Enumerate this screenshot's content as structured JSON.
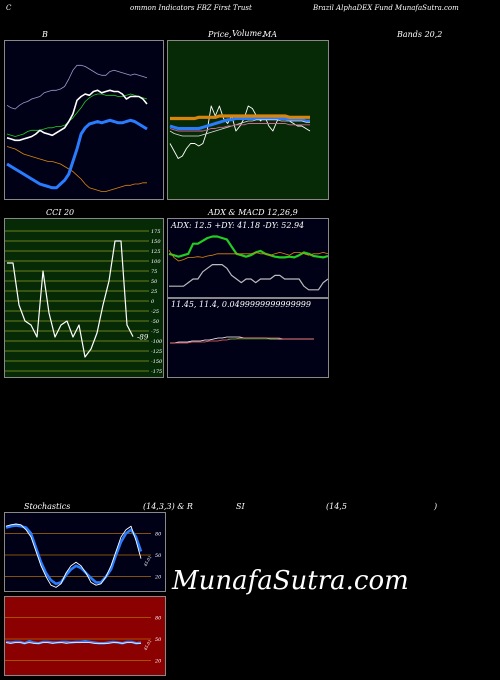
{
  "header": {
    "left": "C",
    "middle": "ommon  Indicators FBZ First Trust",
    "right": "Brazil AlphaDEX  Fund MunafaSutra.com"
  },
  "titles": {
    "b": "B",
    "price": "Price,",
    "price_overlap": "Volume,",
    "ma": "MA",
    "bands": "Bands 20,2",
    "cci": "CCI 20",
    "adx_macd": "ADX  & MACD 12,26,9",
    "stoch": "Stochastics",
    "stoch_params": "(14,3,3) & R",
    "rsi": "SI",
    "rsi_params": "(14,5",
    "rsi_close": ")"
  },
  "adx_readout": "ADX: 12.5 +DY: 41.18 -DY: 52.94",
  "macd_readout": "11.45,  11.4,  0.0499999999999999",
  "watermark": "MunafaSutra.com",
  "colors": {
    "navy_bg": "#000016",
    "green_bg": "#062a06",
    "red_bg": "#8b0000",
    "grid_orange": "#b06a00",
    "blue": "#2a7cff",
    "green": "#22cc22",
    "orange": "#d9850d",
    "white": "#ffffff"
  },
  "chart_data": [
    {
      "type": "line",
      "panel": "bollinger",
      "series": [
        {
          "values": [
            42,
            41,
            40,
            38,
            36,
            35,
            34,
            33,
            32,
            31,
            30,
            30,
            29,
            28,
            26,
            24,
            22,
            19,
            16,
            12,
            9,
            8,
            7,
            6,
            6,
            7,
            8,
            9,
            10,
            11,
            11,
            12,
            12,
            13,
            13
          ]
        },
        {
          "values": [
            52,
            51,
            50,
            51,
            52,
            54,
            55,
            55,
            55,
            56,
            57,
            57,
            58,
            58,
            59,
            62,
            65,
            69,
            73,
            78,
            81,
            83,
            84,
            84,
            83,
            83,
            83,
            82,
            82,
            83,
            84,
            83,
            82,
            81,
            80
          ]
        },
        {
          "values": [
            49,
            48,
            47,
            47,
            48,
            49,
            50,
            52,
            55,
            53,
            52,
            51,
            53,
            55,
            57,
            62,
            68,
            79,
            82,
            84,
            83,
            86,
            87,
            85,
            86,
            87,
            86,
            86,
            84,
            80,
            82,
            82,
            82,
            80,
            76
          ]
        },
        {
          "values": [
            28,
            26,
            24,
            22,
            20,
            18,
            16,
            14,
            12,
            11,
            10,
            9,
            9,
            12,
            15,
            20,
            30,
            40,
            52,
            57,
            60,
            61,
            62,
            61,
            62,
            63,
            62,
            61,
            61,
            62,
            63,
            62,
            60,
            58,
            56
          ]
        },
        {
          "values": [
            75,
            73,
            72,
            75,
            77,
            78,
            80,
            81,
            82,
            85,
            86,
            87,
            87,
            88,
            90,
            96,
            103,
            107,
            107,
            106,
            104,
            102,
            100,
            99,
            99,
            102,
            103,
            102,
            101,
            100,
            99,
            100,
            99,
            98,
            97
          ]
        }
      ]
    },
    {
      "type": "line",
      "panel": "price_ma",
      "series": [
        {
          "values": [
            30,
            24,
            18,
            20,
            26,
            30,
            30,
            28,
            30,
            40,
            60,
            52,
            60,
            50,
            46,
            52,
            40,
            44,
            50,
            60,
            58,
            52,
            48,
            52,
            44,
            40,
            48,
            52,
            52,
            48,
            46,
            44,
            44,
            42,
            40
          ]
        },
        {
          "values": [
            44,
            43,
            42,
            42,
            42,
            42,
            42,
            42,
            43,
            44,
            45,
            46,
            47,
            48,
            49,
            49,
            50,
            50,
            50,
            50,
            50,
            50,
            50,
            50,
            50,
            50,
            50,
            50,
            50,
            49,
            49,
            49,
            49,
            48,
            48
          ]
        },
        {
          "values": [
            50,
            50,
            50,
            50,
            50,
            50,
            50,
            51,
            51,
            51,
            51,
            51,
            52,
            52,
            52,
            52,
            52,
            52,
            52,
            52,
            52,
            52,
            52,
            52,
            52,
            52,
            52,
            52,
            52,
            51,
            51,
            51,
            51,
            51,
            51
          ]
        },
        {
          "values": [
            40,
            38,
            37,
            36,
            36,
            36,
            36,
            36,
            37,
            38,
            39,
            40,
            41,
            42,
            43,
            44,
            45,
            46,
            47,
            48,
            48,
            49,
            49,
            49,
            49,
            49,
            49,
            48,
            48,
            48,
            48,
            48,
            48,
            47,
            47
          ]
        },
        {
          "values": [
            42,
            41,
            40,
            40,
            40,
            40,
            40,
            40,
            40,
            41,
            42,
            42,
            43,
            43,
            44,
            44,
            45,
            45,
            45,
            46,
            46,
            46,
            46,
            46,
            46,
            46,
            46,
            46,
            46,
            45,
            45,
            45,
            45,
            45,
            45
          ]
        }
      ]
    },
    {
      "type": "line",
      "panel": "cci",
      "yticks": [
        175,
        150,
        125,
        100,
        75,
        50,
        25,
        0,
        -25,
        -50,
        -75,
        -100,
        -125,
        -150,
        -175
      ],
      "ylim": [
        -175,
        175
      ],
      "last_label": "-89",
      "values": [
        95,
        95,
        -10,
        -50,
        -60,
        -90,
        75,
        -30,
        -90,
        -60,
        -50,
        -90,
        -60,
        -140,
        -120,
        -80,
        -10,
        50,
        150,
        150,
        -60,
        -89
      ]
    },
    {
      "type": "line",
      "panel": "adx",
      "series": [
        {
          "values": [
            60,
            58,
            56,
            58,
            60,
            74,
            74,
            78,
            82,
            84,
            84,
            82,
            80,
            70,
            60,
            58,
            56,
            58,
            62,
            64,
            60,
            58,
            56,
            55,
            55,
            56,
            55,
            58,
            62,
            60,
            57,
            56,
            55,
            57
          ]
        },
        {
          "values": [
            65,
            55,
            50,
            52,
            55,
            55,
            56,
            55,
            57,
            58,
            60,
            60,
            60,
            60,
            60,
            60,
            60,
            60,
            62,
            60,
            60,
            58,
            60,
            62,
            60,
            58,
            62,
            62,
            60,
            58,
            60,
            60,
            62,
            60
          ]
        },
        {
          "values": [
            15,
            15,
            15,
            15,
            20,
            25,
            25,
            35,
            40,
            45,
            45,
            45,
            40,
            30,
            25,
            20,
            25,
            25,
            20,
            25,
            25,
            25,
            30,
            30,
            25,
            25,
            25,
            25,
            15,
            10,
            10,
            10,
            20,
            25
          ]
        }
      ]
    },
    {
      "type": "line",
      "panel": "macd",
      "series": [
        {
          "values": [
            50,
            50,
            51,
            51,
            51,
            52,
            52,
            52,
            53,
            53,
            54,
            55,
            55,
            56,
            56,
            56,
            56,
            55,
            55,
            55,
            55,
            55,
            55,
            54,
            54,
            54,
            54,
            54,
            54,
            54,
            54,
            54,
            54,
            54
          ]
        },
        {
          "values": [
            50,
            50,
            50,
            50,
            50,
            51,
            51,
            51,
            51,
            52,
            52,
            52,
            53,
            53,
            54,
            54,
            55,
            55,
            55,
            55,
            55,
            55,
            55,
            55,
            55,
            55,
            54,
            54,
            54,
            54,
            54,
            54,
            54,
            54
          ]
        }
      ]
    },
    {
      "type": "line",
      "panel": "stochastics",
      "yticks": [
        80,
        50,
        20
      ],
      "ylim": [
        0,
        100
      ],
      "last_label": "45.01",
      "series": [
        {
          "values": [
            90,
            92,
            93,
            92,
            85,
            75,
            55,
            35,
            20,
            8,
            5,
            10,
            25,
            35,
            40,
            35,
            25,
            12,
            8,
            10,
            20,
            35,
            55,
            75,
            85,
            90,
            70,
            45
          ]
        },
        {
          "values": [
            88,
            90,
            91,
            90,
            88,
            80,
            60,
            40,
            25,
            15,
            10,
            12,
            22,
            30,
            35,
            32,
            25,
            18,
            12,
            12,
            20,
            30,
            50,
            68,
            80,
            85,
            75,
            55
          ]
        }
      ]
    },
    {
      "type": "line",
      "panel": "rsi",
      "yticks": [
        80,
        50,
        20
      ],
      "ylim": [
        0,
        100
      ],
      "last_label": "45.01",
      "series": [
        {
          "values": [
            46,
            45,
            46,
            46,
            44,
            47,
            45,
            44,
            46,
            46,
            45,
            45,
            46,
            46,
            45,
            46,
            46,
            47,
            46,
            45,
            44,
            44,
            45,
            46,
            45,
            44,
            46,
            46,
            44,
            45
          ]
        },
        {
          "values": [
            45,
            44,
            45,
            45,
            44,
            45,
            44,
            44,
            45,
            45,
            44,
            45,
            45,
            44,
            45,
            45,
            45,
            45,
            45,
            44,
            44,
            44,
            44,
            45,
            45,
            44,
            45,
            45,
            44,
            44
          ]
        }
      ]
    }
  ]
}
